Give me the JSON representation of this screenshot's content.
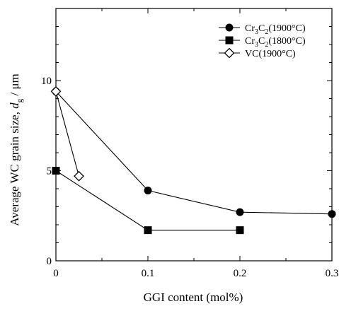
{
  "chart_data": {
    "type": "line",
    "xlabel": "GGI content (mol%)",
    "ylabel": {
      "prefix": "Average WC grain size, ",
      "var": "d",
      "sub": "g",
      "suffix": " / μm"
    },
    "xlim": [
      0,
      0.3
    ],
    "ylim": [
      0,
      14
    ],
    "xticks": [
      0,
      0.1,
      0.2,
      0.3
    ],
    "xtick_labels": [
      "0",
      "0.1",
      "0.2",
      "0.3"
    ],
    "yticks": [
      0,
      5,
      10
    ],
    "ytick_labels": [
      "0",
      "5",
      "10"
    ],
    "grid": false,
    "legend_position": "top-right",
    "series": [
      {
        "legend": {
          "base": "Cr",
          "sub1": "3",
          "mid": "C",
          "sub2": "2",
          "tail": "(1900°C)"
        },
        "marker": "filled-circle",
        "color": "#000000",
        "points": [
          [
            0,
            9.4
          ],
          [
            0.1,
            3.9
          ],
          [
            0.2,
            2.7
          ],
          [
            0.3,
            2.6
          ]
        ]
      },
      {
        "legend": {
          "base": "Cr",
          "sub1": "3",
          "mid": "C",
          "sub2": "2",
          "tail": "(1800°C)"
        },
        "marker": "filled-square",
        "color": "#000000",
        "points": [
          [
            0,
            5.0
          ],
          [
            0.1,
            1.7
          ],
          [
            0.2,
            1.7
          ]
        ]
      },
      {
        "legend": {
          "base": "VC(1900°C)",
          "sub1": "",
          "mid": "",
          "sub2": "",
          "tail": ""
        },
        "marker": "open-diamond",
        "color": "#000000",
        "points": [
          [
            0,
            9.4
          ],
          [
            0.025,
            4.7
          ]
        ]
      }
    ]
  }
}
